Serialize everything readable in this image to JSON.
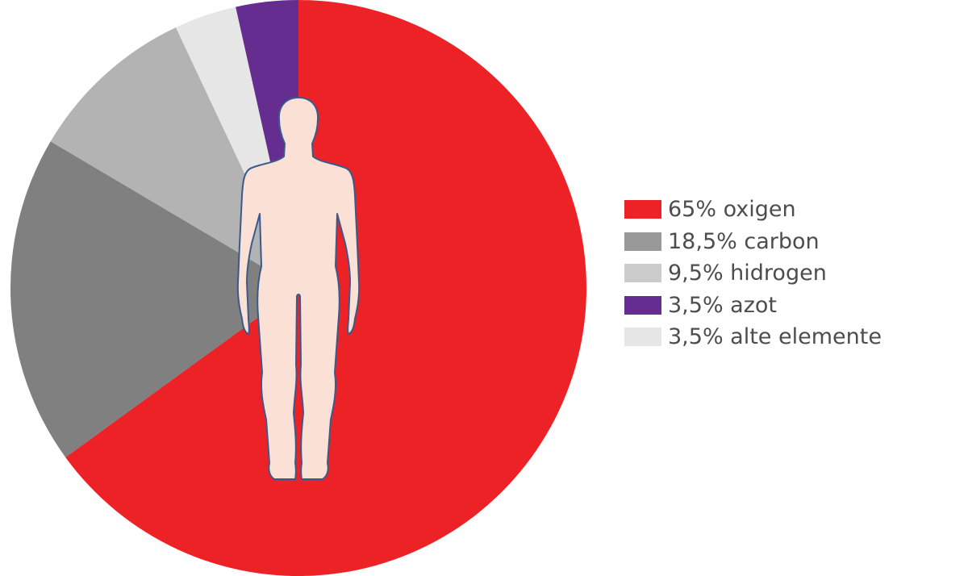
{
  "chart_data": {
    "type": "pie",
    "start": "top",
    "direction": "clockwise",
    "slices": [
      {
        "label": "65% oxigen",
        "value": 65,
        "color": "#ec2227"
      },
      {
        "label": "18,5% carbon",
        "value": 18.5,
        "color": "#808080"
      },
      {
        "label": "9,5% hidrogen",
        "value": 9.5,
        "color": "#b3b3b3"
      },
      {
        "label": "3,5% alte elemente",
        "value": 3.5,
        "color": "#e6e6e6"
      },
      {
        "label": "3,5% azot",
        "value": 3.5,
        "color": "#662d91"
      }
    ],
    "legend": {
      "placement": "right",
      "items": [
        {
          "label": "65% oxigen",
          "color": "#ec2227"
        },
        {
          "label": "18,5% carbon",
          "color": "#999999"
        },
        {
          "label": "9,5% hidrogen",
          "color": "#cccccc"
        },
        {
          "label": "3,5% azot",
          "color": "#662d91"
        },
        {
          "label": "3,5% alte elemente",
          "color": "#e6e6e6"
        }
      ]
    },
    "overlay_icon": "human-body-silhouette-icon",
    "overlay_color": "#fbe0d6",
    "overlay_outline_color": "#3a5a8c"
  }
}
